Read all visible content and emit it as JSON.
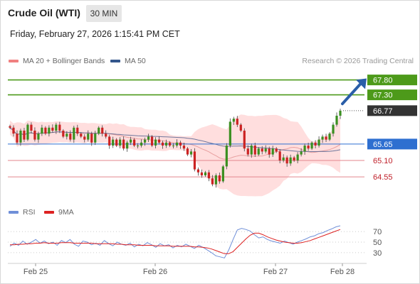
{
  "header": {
    "instrument": "Crude Oil (WTI)",
    "timeframe": "30 MIN",
    "datetime": "Friday, February 27, 2026 1:15:41 PM CET"
  },
  "legend": {
    "ma20_label": "MA 20 + Bollinger Bands",
    "ma50_label": "MA 50",
    "credit": "Research © 2026 Trading Central",
    "rsi_label": "RSI",
    "rsi_ma_label": "9MA"
  },
  "colors": {
    "resistance": "#4d9a1a",
    "pivot": "#2e6fd0",
    "support": "#e3868e",
    "last_price_bg": "#333333",
    "bollinger_fill": "#ffdede",
    "ma20": "#e8a0a0",
    "ma50": "#4a5c8c",
    "candle_up": "#3a8f20",
    "candle_down": "#cc2222",
    "arrow": "#2a5ea8",
    "rsi": "#6f8fd8",
    "rsi_ma": "#dd2222"
  },
  "chart_data": [
    {
      "type": "candlestick",
      "title": "Crude Oil (WTI)",
      "timeframe": "30 MIN",
      "x_labels": [
        "Feb 25",
        "Feb 26",
        "Feb 27",
        "Feb 28"
      ],
      "ylim": [
        64.1,
        68.1
      ],
      "levels": [
        {
          "value": 67.8,
          "label": "67.80",
          "kind": "resistance"
        },
        {
          "value": 67.3,
          "label": "67.30",
          "kind": "resistance"
        },
        {
          "value": 66.77,
          "label": "66.77",
          "kind": "last"
        },
        {
          "value": 65.65,
          "label": "65.65",
          "kind": "pivot"
        },
        {
          "value": 65.1,
          "label": "65.10",
          "kind": "support"
        },
        {
          "value": 64.55,
          "label": "64.55",
          "kind": "support"
        }
      ],
      "arrow": {
        "from": 67.0,
        "to": 67.78,
        "direction": "up"
      },
      "indicators": [
        "MA 20 + Bollinger Bands",
        "MA 50"
      ],
      "closes": [
        66.2,
        66.0,
        65.7,
        66.1,
        65.8,
        66.3,
        66.1,
        65.8,
        66.0,
        66.2,
        66.0,
        66.2,
        66.1,
        66.3,
        66.1,
        65.9,
        66.0,
        65.8,
        66.2,
        66.0,
        65.9,
        65.8,
        66.0,
        65.7,
        66.0,
        66.2,
        66.0,
        65.9,
        65.6,
        65.8,
        65.6,
        65.8,
        65.5,
        65.7,
        65.8,
        65.6,
        65.6,
        65.7,
        65.8,
        65.9,
        65.6,
        65.8,
        65.7,
        65.6,
        65.7,
        65.6,
        65.6,
        65.7,
        65.6,
        65.5,
        65.3,
        65.4,
        64.8,
        64.7,
        64.6,
        64.7,
        64.5,
        64.3,
        64.6,
        64.4,
        64.9,
        65.6,
        66.4,
        66.5,
        66.3,
        66.1,
        65.5,
        65.3,
        65.6,
        65.3,
        65.5,
        65.4,
        65.5,
        65.3,
        65.5,
        65.4,
        65.1,
        65.2,
        65.0,
        65.2,
        65.1,
        65.3,
        65.4,
        65.6,
        65.5,
        65.7,
        65.6,
        65.8,
        65.9,
        65.8,
        66.0,
        66.3,
        66.6,
        66.77
      ]
    },
    {
      "type": "line",
      "title": "RSI",
      "series": [
        {
          "name": "RSI"
        },
        {
          "name": "9MA"
        }
      ],
      "yticks": [
        70,
        50,
        30
      ],
      "ylim": [
        15,
        85
      ],
      "rsi": [
        42,
        48,
        44,
        52,
        46,
        50,
        55,
        48,
        52,
        47,
        50,
        44,
        53,
        49,
        55,
        46,
        42,
        52,
        50,
        45,
        48,
        44,
        53,
        47,
        43,
        50,
        46,
        44,
        48,
        41,
        46,
        43,
        49,
        45,
        40,
        47,
        43,
        45,
        39,
        44,
        41,
        46,
        42,
        38,
        44,
        40,
        35,
        30,
        24,
        22,
        20,
        35,
        55,
        73,
        76,
        74,
        71,
        64,
        58,
        60,
        55,
        52,
        50,
        48,
        52,
        49,
        46,
        50,
        53,
        56,
        60,
        62,
        66,
        68,
        72,
        75,
        79,
        81
      ],
      "rsi_ma": [
        45,
        45,
        46,
        46,
        47,
        47,
        48,
        48,
        49,
        48,
        48,
        48,
        49,
        49,
        49,
        48,
        48,
        48,
        48,
        48,
        47,
        47,
        47,
        47,
        47,
        46,
        46,
        45,
        45,
        45,
        44,
        44,
        44,
        44,
        43,
        43,
        43,
        43,
        42,
        42,
        42,
        42,
        42,
        41,
        41,
        40,
        39,
        37,
        34,
        31,
        28,
        28,
        32,
        40,
        48,
        56,
        63,
        67,
        67,
        64,
        60,
        57,
        54,
        52,
        50,
        49,
        48,
        48,
        49,
        51,
        53,
        56,
        59,
        62,
        65,
        68,
        71,
        74
      ]
    }
  ]
}
